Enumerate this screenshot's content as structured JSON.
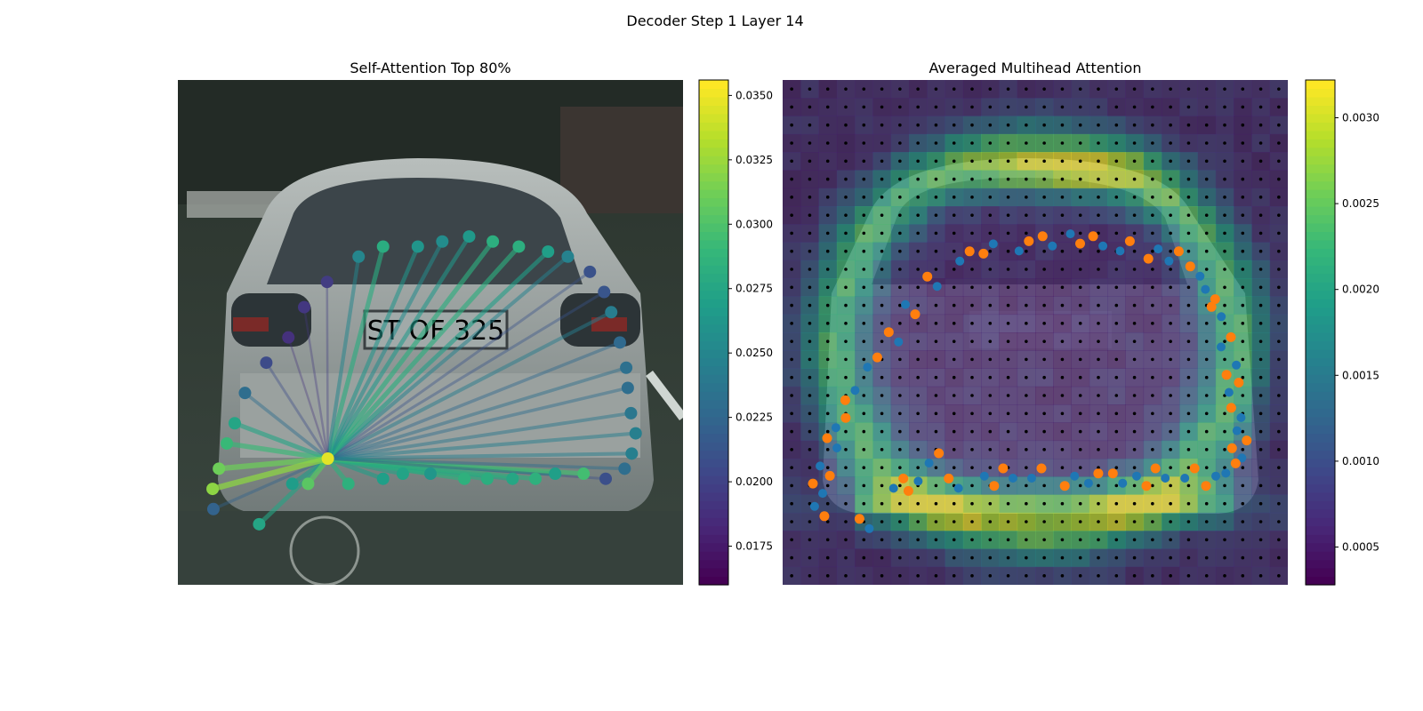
{
  "figure": {
    "suptitle": "Decoder Step 1 Layer 14"
  },
  "colors": {
    "viridis": [
      "#440154",
      "#482878",
      "#3e4989",
      "#31688e",
      "#26828e",
      "#1f9e89",
      "#35b779",
      "#6ece58",
      "#b5de2b",
      "#fde725"
    ],
    "blue_points": "#1f77b4",
    "orange_points": "#ff7f0e",
    "grid_dots": "#000000",
    "photo_sky": "#cfdccf",
    "photo_trees": "#26302a",
    "photo_car_body": "#8a9190",
    "photo_window": "#3a4347",
    "photo_road": "#3a4541",
    "photo_plate": "#9aa3a3"
  },
  "chart_data": [
    {
      "type": "scatter",
      "subtype": "self-attention graph over image",
      "title": "Self-Attention Top 80%",
      "background": "street photo of the rear of a silver car with license plate",
      "plate_text": "ST OF 325",
      "colorbar": {
        "colormap": "viridis",
        "range": [
          0.016,
          0.0356
        ],
        "ticks": [
          "0.0175",
          "0.0200",
          "0.0225",
          "0.0250",
          "0.0275",
          "0.0300",
          "0.0325",
          "0.0350"
        ]
      },
      "query_point": 4,
      "points": [
        {
          "x": 45,
          "y": 85,
          "value": 0.0222
        },
        {
          "x": 103,
          "y": 88,
          "value": 0.0275
        },
        {
          "x": 145,
          "y": 80,
          "value": 0.0268
        },
        {
          "x": 165,
          "y": 80,
          "value": 0.0305
        },
        {
          "x": 190,
          "y": 75,
          "value": 0.0348
        },
        {
          "x": 216,
          "y": 80,
          "value": 0.0285
        },
        {
          "x": 260,
          "y": 79,
          "value": 0.027
        },
        {
          "x": 285,
          "y": 78,
          "value": 0.0273
        },
        {
          "x": 320,
          "y": 78,
          "value": 0.0263
        },
        {
          "x": 363,
          "y": 79,
          "value": 0.0285
        },
        {
          "x": 392,
          "y": 79,
          "value": 0.0282
        },
        {
          "x": 424,
          "y": 79,
          "value": 0.0276
        },
        {
          "x": 453,
          "y": 79,
          "value": 0.0285
        },
        {
          "x": 478,
          "y": 78,
          "value": 0.027
        },
        {
          "x": 514,
          "y": 78,
          "value": 0.0296
        },
        {
          "x": 542,
          "y": 79,
          "value": 0.0208
        },
        {
          "x": 566,
          "y": 77,
          "value": 0.023
        },
        {
          "x": 575,
          "y": 74,
          "value": 0.0245
        },
        {
          "x": 580,
          "y": 70,
          "value": 0.0245
        },
        {
          "x": 574,
          "y": 66,
          "value": 0.0238
        },
        {
          "x": 570,
          "y": 61,
          "value": 0.023
        },
        {
          "x": 568,
          "y": 57,
          "value": 0.0232
        },
        {
          "x": 560,
          "y": 52,
          "value": 0.0227
        },
        {
          "x": 549,
          "y": 46,
          "value": 0.0243
        },
        {
          "x": 540,
          "y": 42,
          "value": 0.0212
        },
        {
          "x": 522,
          "y": 38,
          "value": 0.021
        },
        {
          "x": 494,
          "y": 35,
          "value": 0.0247
        },
        {
          "x": 469,
          "y": 34,
          "value": 0.027
        },
        {
          "x": 432,
          "y": 33,
          "value": 0.0283
        },
        {
          "x": 399,
          "y": 32,
          "value": 0.0283
        },
        {
          "x": 369,
          "y": 31,
          "value": 0.0265
        },
        {
          "x": 335,
          "y": 32,
          "value": 0.0255
        },
        {
          "x": 304,
          "y": 33,
          "value": 0.0262
        },
        {
          "x": 260,
          "y": 33,
          "value": 0.0281
        },
        {
          "x": 229,
          "y": 35,
          "value": 0.025
        },
        {
          "x": 189,
          "y": 40,
          "value": 0.0195
        },
        {
          "x": 160,
          "y": 45,
          "value": 0.0192
        },
        {
          "x": 140,
          "y": 51,
          "value": 0.0188
        },
        {
          "x": 112,
          "y": 56,
          "value": 0.0205
        },
        {
          "x": 85,
          "y": 62,
          "value": 0.023
        },
        {
          "x": 72,
          "y": 68,
          "value": 0.0275
        },
        {
          "x": 62,
          "y": 72,
          "value": 0.0292
        },
        {
          "x": 52,
          "y": 77,
          "value": 0.0312
        },
        {
          "x": 44,
          "y": 81,
          "value": 0.0322
        }
      ]
    },
    {
      "type": "heatmap",
      "title": "Averaged Multihead Attention",
      "background": "same street photo, dimmed, overlaid with attention heatmap",
      "grid_size": [
        28,
        28
      ],
      "colorbar": {
        "colormap": "viridis",
        "range": [
          0.00028,
          0.00322
        ],
        "ticks": [
          "0.0005",
          "0.0010",
          "0.0015",
          "0.0020",
          "0.0025",
          "0.0030"
        ]
      },
      "overlays": [
        {
          "name": "grid points",
          "color": "black"
        },
        {
          "name": "reference points",
          "color": "blue"
        },
        {
          "name": "sampled points",
          "color": "orange"
        }
      ]
    }
  ]
}
